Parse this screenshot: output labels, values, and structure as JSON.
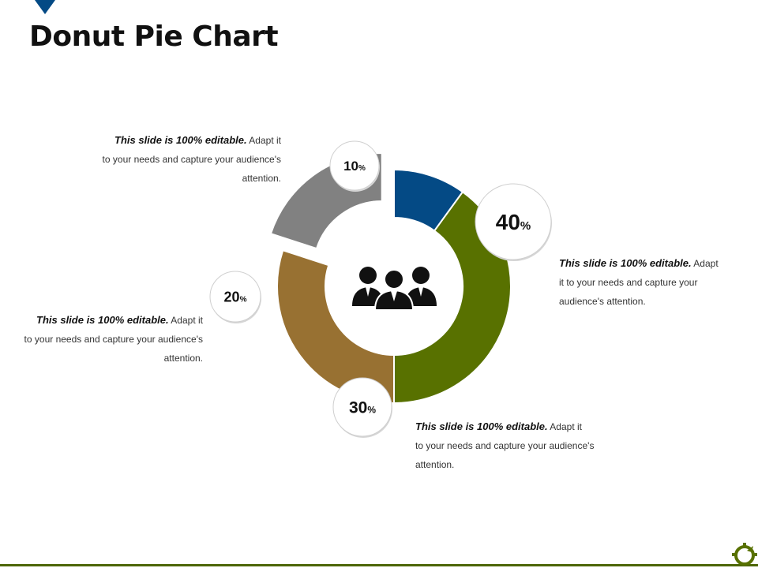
{
  "slide": {
    "title": "Donut Pie Chart"
  },
  "chart_data": {
    "type": "pie",
    "style": "donut",
    "categories": [
      "10%",
      "40%",
      "30%",
      "20%"
    ],
    "values": [
      10,
      40,
      30,
      20
    ],
    "labels": [
      {
        "value": "10",
        "unit": "%"
      },
      {
        "value": "40",
        "unit": "%"
      },
      {
        "value": "30",
        "unit": "%"
      },
      {
        "value": "20",
        "unit": "%"
      }
    ],
    "colors": [
      "#044a85",
      "#587100",
      "#987132",
      "#818181"
    ],
    "center_icon": "team-people-icon"
  },
  "notes": [
    {
      "bold": "This slide is 100% editable.",
      "rest": " Adapt it",
      "line2": "to your needs and capture your audience's",
      "line3": "attention."
    },
    {
      "bold": "This slide is 100% editable.",
      "rest": " Adapt",
      "line2": "it to your needs and capture your",
      "line3": "audience's attention."
    },
    {
      "bold": "This slide is 100% editable.",
      "rest": " Adapt it",
      "line2": "to your needs and capture your audience's",
      "line3": "attention."
    },
    {
      "bold": "This slide is 100% editable.",
      "rest": " Adapt it",
      "line2": "to your needs and capture your audience's",
      "line3": "attention."
    }
  ],
  "colors": {
    "accent_line": "#4d6600",
    "marker": "#044a85",
    "logo": "#587100"
  }
}
